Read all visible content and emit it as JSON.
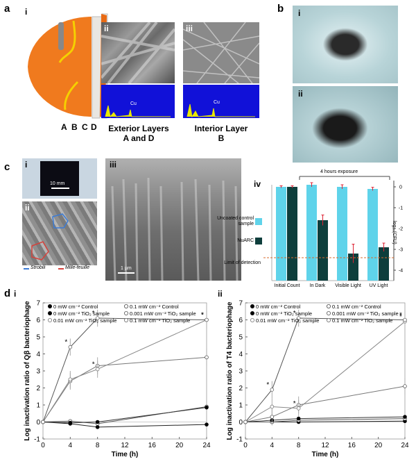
{
  "panel_a": {
    "label": "a",
    "sub_i": "i",
    "sub_ii": "ii",
    "sub_iii": "iii",
    "layer_letters": [
      "A",
      "B",
      "C",
      "D"
    ],
    "eds_peak_label": "Cu",
    "caption_ext_1": "Exterior Layers",
    "caption_ext_2": "A and D",
    "caption_int_1": "Interior Layer",
    "caption_int_2": "B"
  },
  "panel_b": {
    "label": "b",
    "sub_i": "i",
    "sub_ii": "ii"
  },
  "panel_c": {
    "label": "c",
    "sub_i": "i",
    "sub_ii": "ii",
    "sub_iii": "iii",
    "sub_iv": "iv",
    "scale_i": "10 mm",
    "scale_iii": "1 µm",
    "legend_strobili": "Strobili",
    "legend_millefeuille": "Mille-feuille",
    "bar_chart": {
      "type": "bar",
      "exposure_label": "4 hours exposure",
      "categories": [
        "Initial Count",
        "In Dark",
        "Visible Light",
        "UV Light"
      ],
      "series": [
        {
          "name": "Uncoated control sample",
          "color": "#5fd3ea",
          "values": [
            0,
            0.1,
            0,
            -0.1
          ]
        },
        {
          "name": "NuARC",
          "color": "#0e3e3c",
          "values": [
            0,
            -1.6,
            -3.2,
            -2.9
          ]
        }
      ],
      "errors": [
        [
          0.05,
          0.1,
          0.1,
          0.08
        ],
        [
          0.05,
          0.25,
          0.45,
          0.2
        ]
      ],
      "ylabel": "log₁₀(CFU)",
      "ylim": [
        -4.5,
        0.1
      ],
      "ytick_labels": [
        "0",
        "-1",
        "-2",
        "-3",
        "-4"
      ],
      "detection_label": "Limit of detection",
      "detection_value": -3.4
    }
  },
  "panel_d": {
    "label": "d",
    "sub_i": "i",
    "sub_ii": "ii",
    "legend": [
      "0 mW cm⁻² Control",
      "0.1 mW cm⁻² Control",
      "0 mW cm⁻² TiO₂ sample",
      "0.001 mW cm⁻² TiO₂ sample",
      "0.01 mW cm⁻² TiO₂ sample",
      "0.1 mW cm⁻² TiO₂ sample"
    ],
    "significance_mark": "*"
  },
  "chart_data": [
    {
      "type": "line",
      "title": "",
      "xlabel": "Time (h)",
      "ylabel": "Log inactivation ratio of Qβ bacteriophage",
      "x": [
        0,
        4,
        8,
        24
      ],
      "xlim": [
        0,
        24
      ],
      "ylim": [
        -1,
        7
      ],
      "xtick_labels": [
        "0",
        "4",
        "8",
        "12",
        "16",
        "20",
        "24"
      ],
      "ytick_labels": [
        "-1",
        "0",
        "1",
        "2",
        "3",
        "4",
        "5",
        "6",
        "7"
      ],
      "series": [
        {
          "name": "0 mW cm⁻² Control",
          "values": [
            0,
            -0.1,
            -0.3,
            -0.15
          ]
        },
        {
          "name": "0.1 mW cm⁻² Control",
          "values": [
            0,
            0.05,
            -0.1,
            0.9
          ]
        },
        {
          "name": "0 mW cm⁻² TiO₂ sample",
          "values": [
            0,
            -0.05,
            0.0,
            0.85
          ]
        },
        {
          "name": "0.001 mW cm⁻² TiO₂ sample",
          "values": [
            0,
            2.4,
            3.3,
            3.8
          ]
        },
        {
          "name": "0.01 mW cm⁻² TiO₂ sample",
          "values": [
            0,
            2.5,
            3.1,
            6.0
          ]
        },
        {
          "name": "0.1 mW cm⁻² TiO₂ sample",
          "values": [
            0,
            4.4,
            6.1,
            6.0
          ]
        }
      ]
    },
    {
      "type": "line",
      "title": "",
      "xlabel": "Time (h)",
      "ylabel": "Log inactivation ratio of T4 bacteriophage",
      "x": [
        0,
        4,
        8,
        24
      ],
      "xlim": [
        0,
        24
      ],
      "ylim": [
        -1,
        7
      ],
      "xtick_labels": [
        "0",
        "4",
        "8",
        "12",
        "16",
        "20",
        "24"
      ],
      "ytick_labels": [
        "-1",
        "0",
        "1",
        "2",
        "3",
        "4",
        "5",
        "6",
        "7"
      ],
      "series": [
        {
          "name": "0 mW cm⁻² Control",
          "values": [
            0,
            0.0,
            0.0,
            0.05
          ]
        },
        {
          "name": "0.1 mW cm⁻² Control",
          "values": [
            0,
            0.0,
            0.1,
            0.2
          ]
        },
        {
          "name": "0 mW cm⁻² TiO₂ sample",
          "values": [
            0,
            0.1,
            0.2,
            0.3
          ]
        },
        {
          "name": "0.001 mW cm⁻² TiO₂ sample",
          "values": [
            0,
            0.3,
            1.0,
            2.1
          ]
        },
        {
          "name": "0.01 mW cm⁻² TiO₂ sample",
          "values": [
            0,
            0.9,
            0.8,
            5.9
          ]
        },
        {
          "name": "0.1 mW cm⁻² TiO₂ sample",
          "values": [
            0,
            1.9,
            6.1,
            6.0
          ]
        }
      ]
    }
  ]
}
